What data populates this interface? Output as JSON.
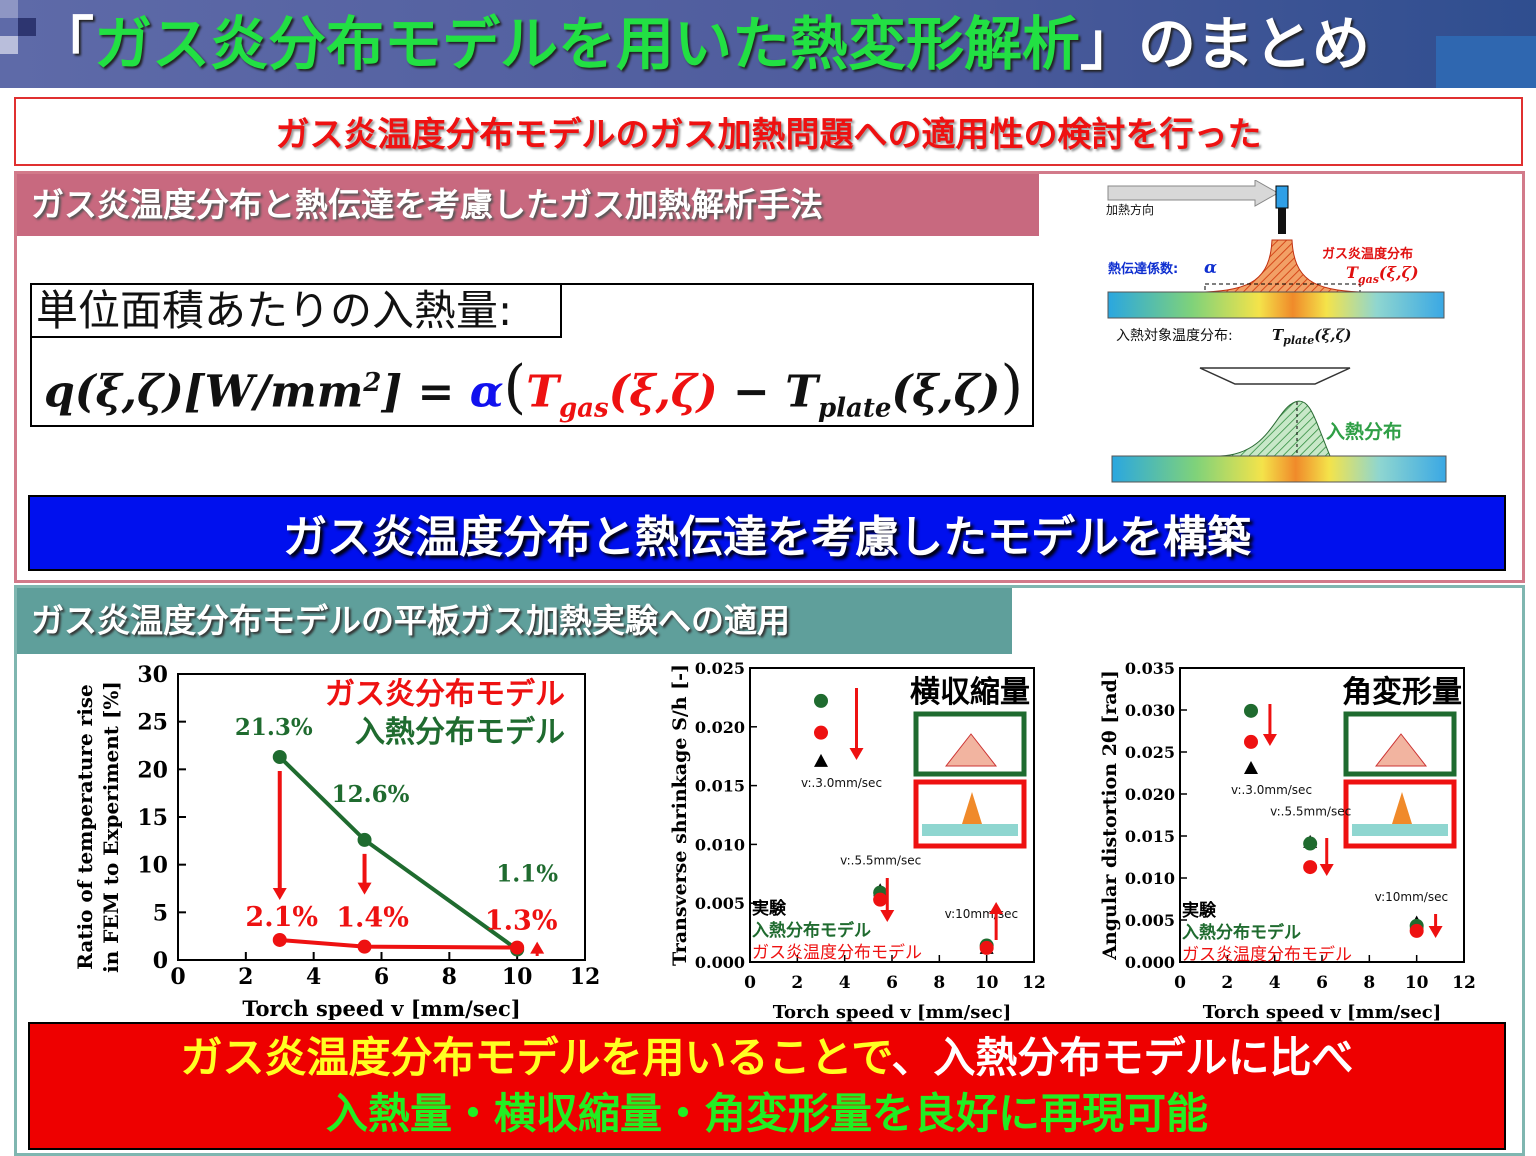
{
  "title": {
    "open_bracket": "「",
    "main": "ガス炎分布モデルを用いた熱変形解析",
    "close_bracket": "」",
    "suffix": "のまとめ"
  },
  "headline": "ガス炎温度分布モデルのガス加熱問題への適用性の検討を行った",
  "section1": {
    "header": "ガス炎温度分布と熱伝達を考慮したガス加熱解析手法",
    "formula_label": "単位面積あたりの入熱量:",
    "formula": {
      "lhs": "q(ξ,ζ)[W/mm",
      "exp": "2",
      "rhs_close": "] = ",
      "alpha": "α",
      "open": "(",
      "tgas": "T",
      "tgas_sub": "gas",
      "tgas_args": "(ξ,ζ)",
      "minus": " − ",
      "tplate": "T",
      "tplate_sub": "plate",
      "tplate_args": "(ξ,ζ)",
      "close": ")"
    },
    "illustration": {
      "heating_direction": "加熱方向",
      "heat_transfer": "熱伝達係数:",
      "heat_transfer_sym": "α",
      "gas_dist": "ガス炎温度分布",
      "gas_dist_sym": "T",
      "gas_dist_sub": "gas",
      "gas_dist_args": "(ξ,ζ)",
      "plate_dist": "入熱対象温度分布:",
      "plate_dist_sym": "T",
      "plate_dist_sub": "plate",
      "plate_dist_args": "(ξ,ζ)",
      "heat_input": "入熱分布"
    },
    "banner": "ガス炎温度分布と熱伝達を考慮したモデルを構築"
  },
  "section2": {
    "header": "ガス炎温度分布モデルの平板ガス加熱実験への適用"
  },
  "colors": {
    "green": "#1f6b2f",
    "red": "#ee1111",
    "black": "#000000"
  },
  "chart_data": [
    {
      "type": "line",
      "ylabel_line1": "Ratio of temperature rise",
      "ylabel_line2": "in FEM to Experiment [%]",
      "xlabel": "Torch speed v [mm/sec]",
      "xlim": [
        0,
        12
      ],
      "ylim": [
        0,
        30
      ],
      "xticks": [
        0,
        2,
        4,
        6,
        8,
        10,
        12
      ],
      "yticks": [
        0,
        5,
        10,
        15,
        20,
        25,
        30
      ],
      "legend": [
        "ガス炎分布モデル",
        "入熱分布モデル"
      ],
      "series": [
        {
          "name": "入熱分布モデル",
          "color": "green",
          "x": [
            3,
            5.5,
            10
          ],
          "values": [
            21.3,
            12.6,
            1.1
          ],
          "labels": [
            "21.3%",
            "12.6%",
            "1.1%"
          ]
        },
        {
          "name": "ガス炎分布モデル",
          "color": "red",
          "x": [
            3,
            5.5,
            10
          ],
          "values": [
            2.1,
            1.4,
            1.3
          ],
          "labels": [
            "2.1%",
            "1.4%",
            "1.3%"
          ]
        }
      ]
    },
    {
      "type": "scatter",
      "title": "横収縮量",
      "ylabel": "Transverse shrinkage S/h [-]",
      "xlabel": "Torch speed v [mm/sec]",
      "xlim": [
        0,
        12
      ],
      "ylim": [
        0,
        0.025
      ],
      "xticks": [
        "0",
        "2",
        "4",
        "6",
        "8",
        "10",
        "12"
      ],
      "yticks": [
        "0.000",
        "0.005",
        "0.010",
        "0.015",
        "0.020",
        "0.025"
      ],
      "speed_labels": [
        "v:.3.0mm/sec",
        "v:.5.5mm/sec",
        "v:10mm/sec"
      ],
      "legend": [
        "実験",
        "入熱分布モデル",
        "ガス炎温度分布モデル"
      ],
      "x": [
        3,
        5.5,
        10
      ],
      "series": [
        {
          "name": "実験",
          "values": [
            0.0171,
            0.0061,
            0.0012
          ]
        },
        {
          "name": "入熱分布モデル",
          "values": [
            0.0222,
            0.0059,
            0.0014
          ]
        },
        {
          "name": "ガス炎温度分布モデル",
          "values": [
            0.0195,
            0.0053,
            0.0012
          ]
        }
      ]
    },
    {
      "type": "scatter",
      "title": "角変形量",
      "ylabel": "Angular distortion 2θ [rad]",
      "xlabel": "Torch speed v [mm/sec]",
      "xlim": [
        0,
        12
      ],
      "ylim": [
        0,
        0.035
      ],
      "xticks": [
        "0",
        "2",
        "4",
        "6",
        "8",
        "10",
        "12"
      ],
      "yticks": [
        "0.000",
        "0.005",
        "0.010",
        "0.015",
        "0.020",
        "0.025",
        "0.030",
        "0.035"
      ],
      "speed_labels": [
        "v:.3.0mm/sec",
        "v:.5.5mm/sec",
        "v:10mm/sec"
      ],
      "legend": [
        "実験",
        "入熱分布モデル",
        "ガス炎温度分布モデル"
      ],
      "x": [
        3,
        5.5,
        10
      ],
      "series": [
        {
          "name": "実験",
          "values": [
            0.0231,
            0.0143,
            0.0047
          ]
        },
        {
          "name": "入熱分布モデル",
          "values": [
            0.0299,
            0.0141,
            0.0043
          ]
        },
        {
          "name": "ガス炎温度分布モデル",
          "values": [
            0.0262,
            0.0113,
            0.0037
          ]
        }
      ]
    }
  ],
  "conclusion": {
    "line1a": "ガス炎温度分布モデルを用いることで",
    "line1b": "、入熱分布モデルに比べ",
    "line2": "入熱量・横収縮量・角変形量を良好に再現可能"
  }
}
